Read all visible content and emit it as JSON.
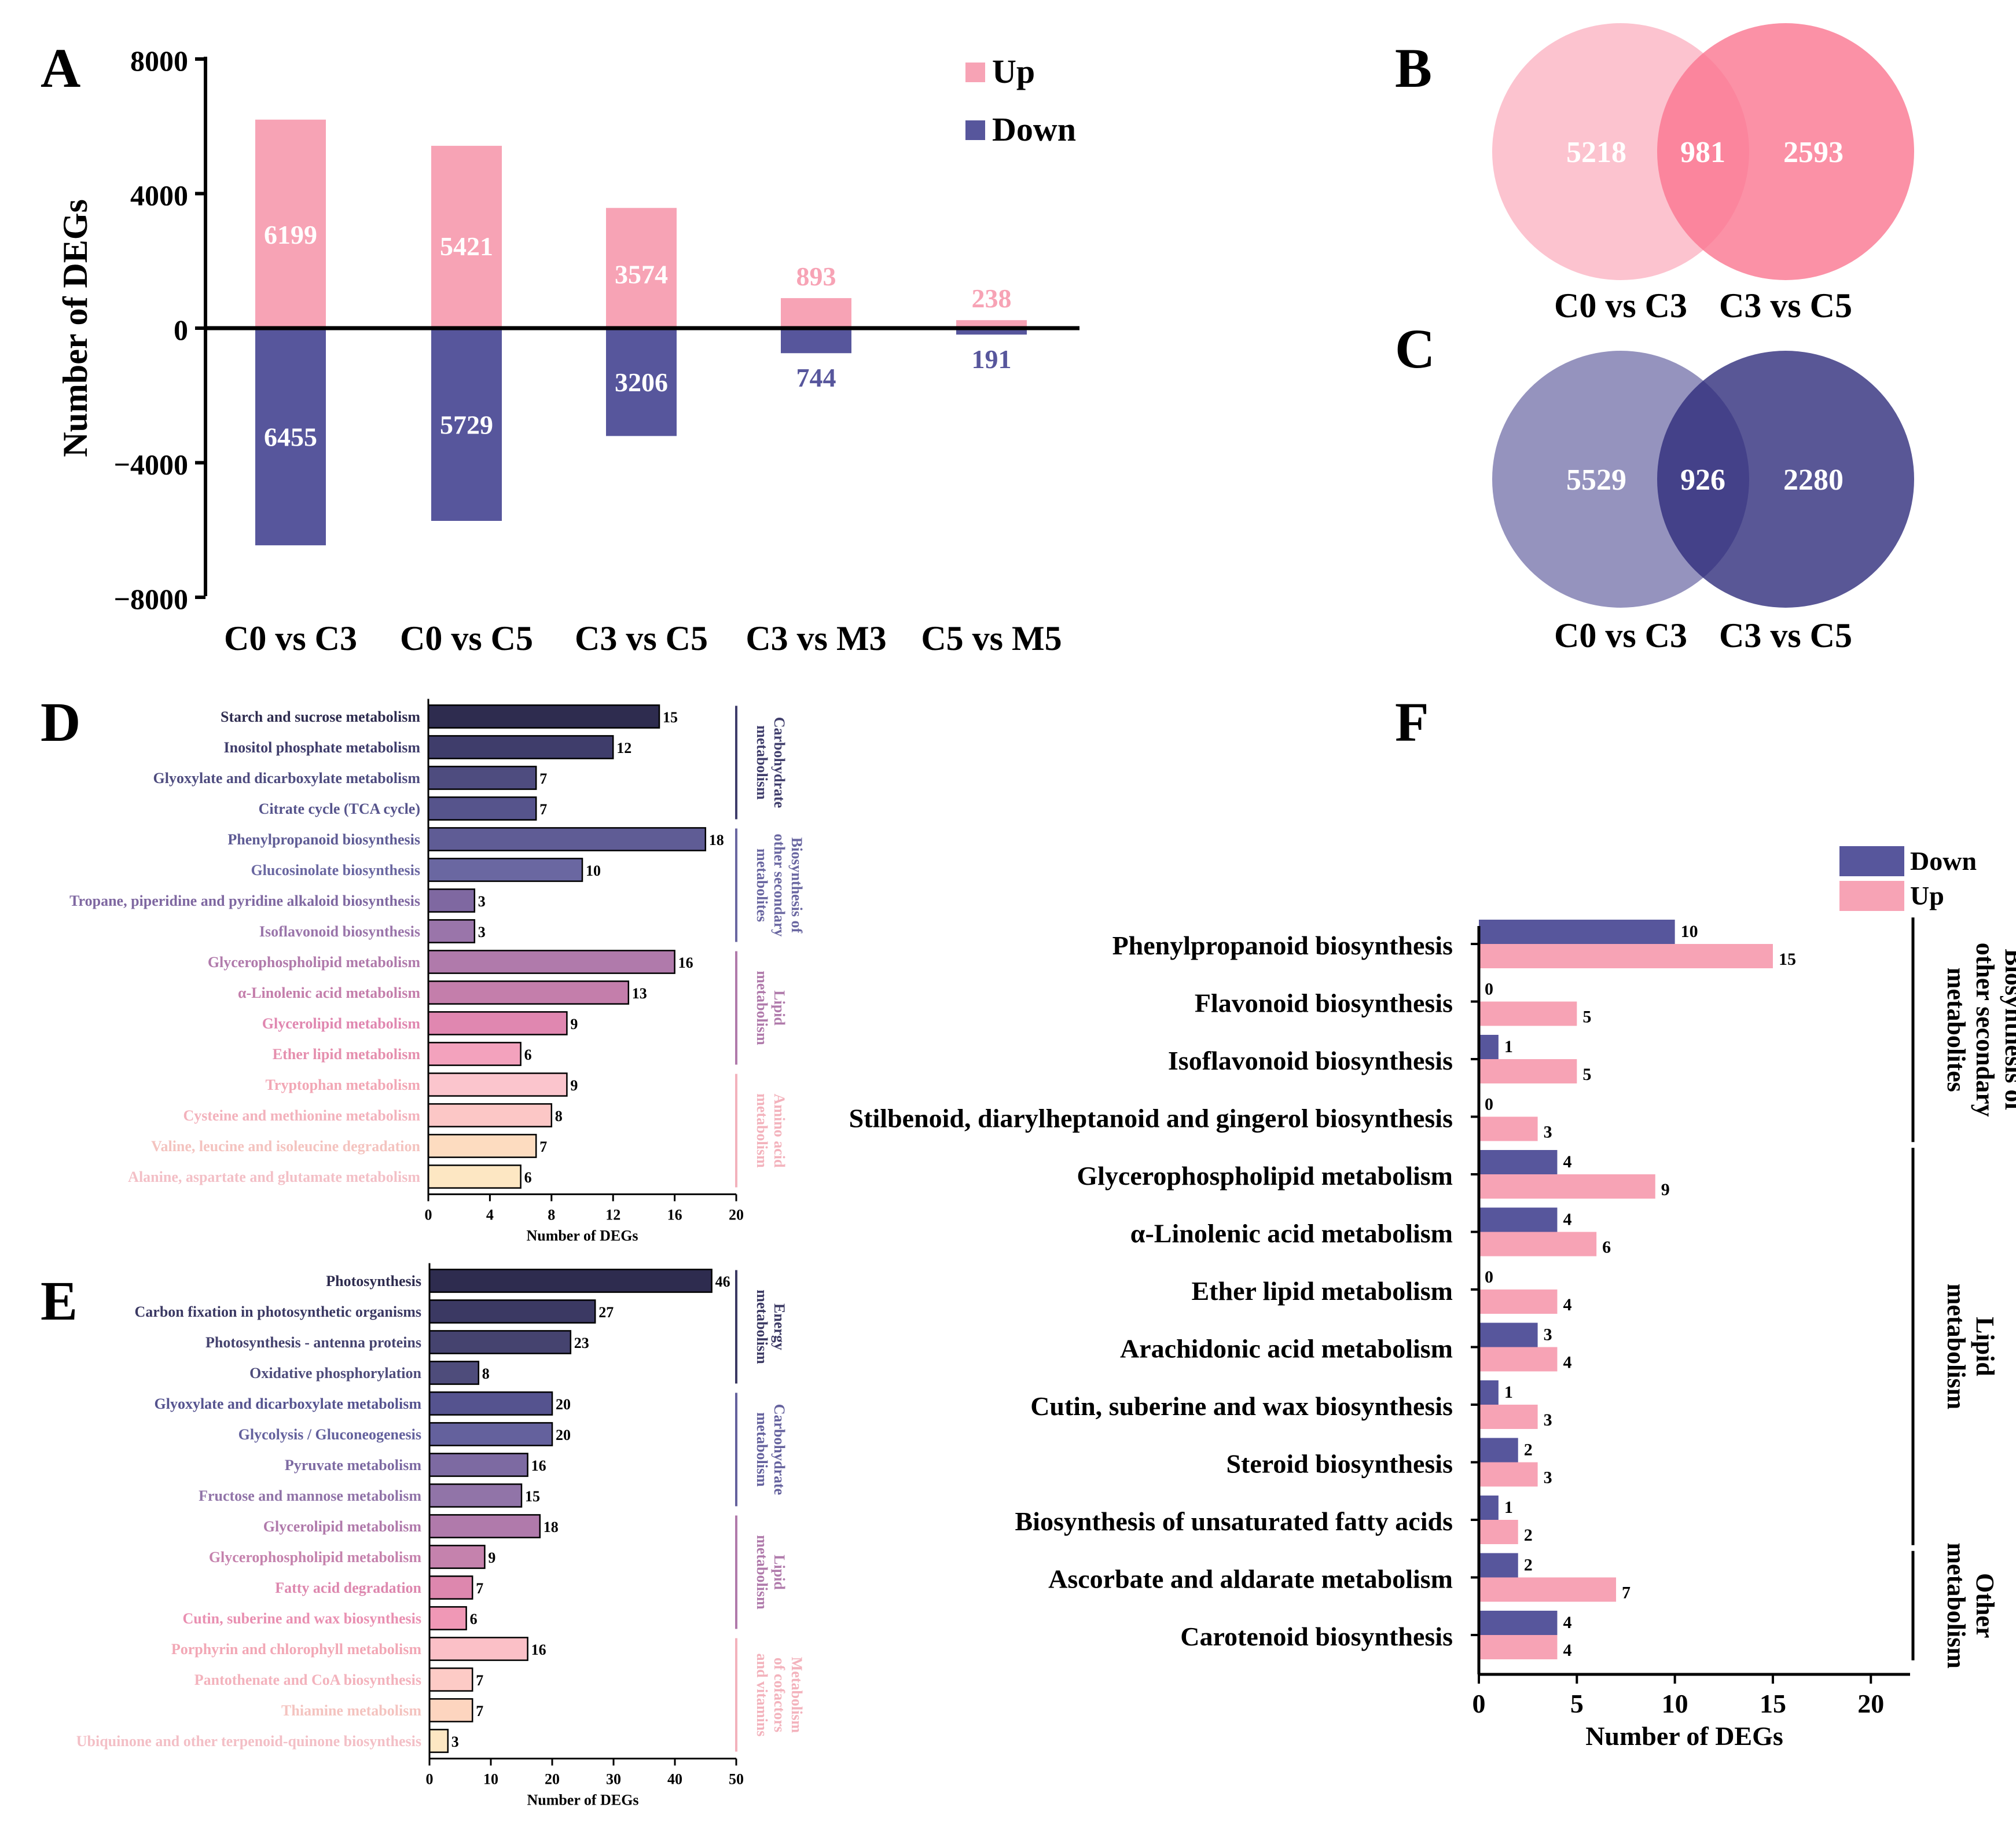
{
  "panels": {
    "A": "A",
    "B": "B",
    "C": "C",
    "D": "D",
    "E": "E",
    "F": "F"
  },
  "colors": {
    "up": "#f7a3b5",
    "down": "#57569c",
    "axis": "#000000",
    "venn_b_left": "#fbb4c3",
    "venn_b_right": "#fa7690",
    "venn_c_left": "#7a78ae",
    "venn_c_right": "#2f2d7c"
  },
  "chart_data": [
    {
      "id": "A",
      "type": "bar",
      "title": "",
      "ylabel": "Number of DEGs",
      "ylim": [
        -8000,
        8000
      ],
      "yticks": [
        8000,
        4000,
        0,
        -4000,
        -8000
      ],
      "ytick_labels": [
        "8000",
        "4000",
        "0",
        "−4000",
        "−8000"
      ],
      "categories": [
        "C0 vs C3",
        "C0 vs C5",
        "C3 vs C5",
        "C3 vs M3",
        "C5 vs M5"
      ],
      "legend": [
        "Up",
        "Down"
      ],
      "legend_position": "top-right",
      "series": [
        {
          "name": "Up",
          "values": [
            6199,
            5421,
            3574,
            893,
            238
          ]
        },
        {
          "name": "Down",
          "values": [
            -6455,
            -5729,
            -3206,
            -744,
            -191
          ]
        }
      ],
      "value_labels": {
        "up": [
          "6199",
          "5421",
          "3574",
          "893",
          "238"
        ],
        "down": [
          "6455",
          "5729",
          "3206",
          "744",
          "191"
        ]
      }
    },
    {
      "id": "B",
      "type": "venn",
      "sets": [
        "C0 vs C3",
        "C3 vs C5"
      ],
      "values": {
        "left_only": 5218,
        "both": 981,
        "right_only": 2593
      },
      "labels": {
        "left_only": "5218",
        "both": "981",
        "right_only": "2593"
      }
    },
    {
      "id": "C",
      "type": "venn",
      "sets": [
        "C0 vs C3",
        "C3 vs C5"
      ],
      "values": {
        "left_only": 5529,
        "both": 926,
        "right_only": 2280
      },
      "labels": {
        "left_only": "5529",
        "both": "926",
        "right_only": "2280"
      }
    },
    {
      "id": "D",
      "type": "bar",
      "orientation": "horizontal",
      "xlabel": "Number of DEGs",
      "xlim": [
        0,
        20
      ],
      "xticks": [
        0,
        4,
        8,
        12,
        16,
        20
      ],
      "xtick_labels": [
        "0",
        "4",
        "8",
        "12",
        "16",
        "20"
      ],
      "categories": [
        "Starch and sucrose metabolism",
        "Inositol phosphate metabolism",
        "Glyoxylate and dicarboxylate metabolism",
        "Citrate cycle (TCA cycle)",
        "Phenylpropanoid biosynthesis",
        "Glucosinolate biosynthesis",
        "Tropane, piperidine and pyridine alkaloid biosynthesis",
        "Isoflavonoid biosynthesis",
        "Glycerophospholipid metabolism",
        "α-Linolenic acid metabolism",
        "Glycerolipid metabolism",
        "Ether lipid metabolism",
        "Tryptophan metabolism",
        "Cysteine and methionine metabolism",
        "Valine, leucine and isoleucine degradation",
        "Alanine, aspartate and glutamate metabolism"
      ],
      "values": [
        15,
        12,
        7,
        7,
        18,
        10,
        3,
        3,
        16,
        13,
        9,
        6,
        9,
        8,
        7,
        6
      ],
      "value_labels": [
        "15",
        "12",
        "7",
        "7",
        "18",
        "10",
        "3",
        "3",
        "16",
        "13",
        "9",
        "6",
        "9",
        "8",
        "7",
        "6"
      ],
      "bar_colors": [
        "#2e2c4f",
        "#3f3d6b",
        "#4e4c7f",
        "#56548c",
        "#5f5c95",
        "#6a67a1",
        "#7f68a1",
        "#9a75aa",
        "#b07aab",
        "#c47eab",
        "#e087b0",
        "#f3a2bd",
        "#fbc5cd",
        "#fcc7c6",
        "#fddcc0",
        "#fde7c3"
      ],
      "label_colors": [
        "#2e2c4f",
        "#3f3d6b",
        "#4e4c7f",
        "#56548c",
        "#5f5c95",
        "#6a67a1",
        "#7f68a1",
        "#9a75aa",
        "#b07aab",
        "#c47eab",
        "#e087b0",
        "#e58fae",
        "#f2a7b5",
        "#f3b2bc",
        "#f4c3bf",
        "#f3bfc6"
      ],
      "groups": [
        {
          "lines": [
            "Carbohydrate",
            "metabolism"
          ],
          "start": 0,
          "end": 3,
          "color": "#3f3d6b"
        },
        {
          "lines": [
            "Biosynthesis of",
            "other secondary",
            "metabolites"
          ],
          "start": 4,
          "end": 7,
          "color": "#6a67a1"
        },
        {
          "lines": [
            "Lipid",
            "metabolism"
          ],
          "start": 8,
          "end": 11,
          "color": "#b07aab"
        },
        {
          "lines": [
            "Amino acid",
            "metabolism"
          ],
          "start": 12,
          "end": 15,
          "color": "#f3b2bc"
        }
      ]
    },
    {
      "id": "E",
      "type": "bar",
      "orientation": "horizontal",
      "xlabel": "Number of DEGs",
      "xlim": [
        0,
        50
      ],
      "xticks": [
        0,
        10,
        20,
        30,
        40,
        50
      ],
      "xtick_labels": [
        "0",
        "10",
        "20",
        "30",
        "40",
        "50"
      ],
      "categories": [
        "Photosynthesis",
        "Carbon fixation in photosynthetic organisms",
        "Photosynthesis - antenna proteins",
        "Oxidative phosphorylation",
        "Glyoxylate and dicarboxylate metabolism",
        "Glycolysis / Gluconeogenesis",
        "Pyruvate metabolism",
        "Fructose and mannose metabolism",
        "Glycerolipid metabolism",
        "Glycerophospholipid metabolism",
        "Fatty acid degradation",
        "Cutin, suberine and wax biosynthesis",
        "Porphyrin and chlorophyll metabolism",
        "Pantothenate and CoA biosynthesis",
        "Thiamine metabolism",
        "Ubiquinone and other terpenoid-quinone biosynthesis"
      ],
      "values": [
        46,
        27,
        23,
        8,
        20,
        20,
        16,
        15,
        18,
        9,
        7,
        6,
        16,
        7,
        7,
        3
      ],
      "value_labels": [
        "46",
        "27",
        "23",
        "8",
        "20",
        "20",
        "16",
        "15",
        "18",
        "9",
        "7",
        "6",
        "16",
        "7",
        "7",
        "3"
      ],
      "bar_colors": [
        "#2e2c4f",
        "#3b3963",
        "#45436f",
        "#4e4c7b",
        "#55538f",
        "#64619d",
        "#7d6aa2",
        "#9174a8",
        "#b07aab",
        "#c582ad",
        "#dd87ae",
        "#f098b6",
        "#fbc0c7",
        "#fdcbc6",
        "#fdd5bf",
        "#fde7c3"
      ],
      "label_colors": [
        "#2e2c4f",
        "#3b3963",
        "#45436f",
        "#4e4c7b",
        "#55538f",
        "#64619d",
        "#7d6aa2",
        "#9174a8",
        "#b07aab",
        "#c582ad",
        "#dd87ae",
        "#e98fb1",
        "#f2a7b5",
        "#f3b2bc",
        "#f4c3bf",
        "#f3bfc6"
      ],
      "groups": [
        {
          "lines": [
            "Energy",
            "metabolism"
          ],
          "start": 0,
          "end": 3,
          "color": "#3b3963"
        },
        {
          "lines": [
            "Carbohydrate",
            "metabolism"
          ],
          "start": 4,
          "end": 7,
          "color": "#64619d"
        },
        {
          "lines": [
            "Lipid",
            "metabolism"
          ],
          "start": 8,
          "end": 11,
          "color": "#b07aab"
        },
        {
          "lines": [
            "Metabolism",
            "of cofactors",
            "and vitamins"
          ],
          "start": 12,
          "end": 15,
          "color": "#f3b2bc"
        }
      ]
    },
    {
      "id": "F",
      "type": "bar",
      "orientation": "horizontal",
      "xlabel": "Number of DEGs",
      "xlim": [
        0,
        22
      ],
      "xticks": [
        0,
        5,
        10,
        15,
        20
      ],
      "xtick_labels": [
        "0",
        "5",
        "10",
        "15",
        "20"
      ],
      "legend": [
        "Down",
        "Up"
      ],
      "legend_position": "top-right",
      "categories": [
        "Phenylpropanoid biosynthesis",
        "Flavonoid biosynthesis",
        "Isoflavonoid biosynthesis",
        "Stilbenoid, diarylheptanoid and gingerol biosynthesis",
        "Glycerophospholipid metabolism",
        "α-Linolenic acid metabolism",
        "Ether lipid metabolism",
        "Arachidonic acid metabolism",
        "Cutin, suberine and wax biosynthesis",
        "Steroid biosynthesis",
        "Biosynthesis of unsaturated fatty acids",
        "Ascorbate and aldarate metabolism",
        "Carotenoid biosynthesis"
      ],
      "series": [
        {
          "name": "Down",
          "values": [
            10,
            0,
            1,
            0,
            4,
            4,
            0,
            3,
            1,
            2,
            1,
            2,
            4
          ]
        },
        {
          "name": "Up",
          "values": [
            15,
            5,
            5,
            3,
            9,
            6,
            4,
            4,
            3,
            3,
            2,
            7,
            4
          ]
        }
      ],
      "value_labels": {
        "down": [
          "10",
          "0",
          "1",
          "0",
          "4",
          "4",
          "0",
          "3",
          "1",
          "2",
          "1",
          "2",
          "4"
        ],
        "up": [
          "15",
          "5",
          "5",
          "3",
          "9",
          "6",
          "4",
          "4",
          "3",
          "3",
          "2",
          "7",
          "4"
        ]
      },
      "groups": [
        {
          "lines": [
            "Biosynthesis of",
            "other secondary",
            "metabolites"
          ],
          "start": 0,
          "end": 3
        },
        {
          "lines": [
            "Lipid",
            "metabolism"
          ],
          "start": 4,
          "end": 10
        },
        {
          "lines": [
            "Other",
            "metabolism"
          ],
          "start": 11,
          "end": 12
        }
      ]
    }
  ]
}
